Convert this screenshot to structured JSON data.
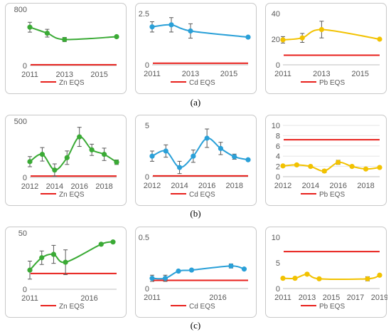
{
  "captions": [
    "(a)",
    "(b)",
    "(c)"
  ],
  "chart_data": [
    {
      "id": "a-zn",
      "type": "line",
      "series": [
        {
          "name": "",
          "color": "#3aaa35",
          "x": [
            2011,
            2012,
            2013,
            2016
          ],
          "values": [
            545,
            460,
            370,
            410
          ],
          "err": [
            70,
            55,
            30,
            0
          ]
        }
      ],
      "eqs": {
        "label": "Zn EQS",
        "value": 12
      },
      "xticks": [
        2011,
        2013,
        2015
      ],
      "yticks": [
        0,
        800
      ],
      "xlim": [
        2011,
        2016
      ],
      "ylim": [
        0,
        800
      ]
    },
    {
      "id": "a-cd",
      "type": "line",
      "series": [
        {
          "name": "",
          "color": "#2aa0d8",
          "x": [
            2011,
            2012,
            2013,
            2016
          ],
          "values": [
            1.85,
            1.95,
            1.65,
            1.35
          ],
          "err": [
            0.25,
            0.35,
            0.35,
            0
          ]
        }
      ],
      "eqs": {
        "label": "Cd EQS",
        "value": 0.08
      },
      "xticks": [
        2011,
        2013,
        2015
      ],
      "yticks": [
        0,
        2.5
      ],
      "xlim": [
        2011,
        2016
      ],
      "ylim": [
        0,
        2.5
      ]
    },
    {
      "id": "a-pb",
      "type": "line",
      "series": [
        {
          "name": "",
          "color": "#f2c200",
          "x": [
            2011,
            2012,
            2013,
            2016
          ],
          "values": [
            19.5,
            21,
            27.5,
            20
          ],
          "err": [
            2.5,
            3.5,
            6.5,
            0
          ]
        }
      ],
      "eqs": {
        "label": "Pb EQS",
        "value": 7.5
      },
      "xticks": [
        2011,
        2013,
        2015
      ],
      "yticks": [
        0,
        20,
        40
      ],
      "xlim": [
        2011,
        2016
      ],
      "ylim": [
        0,
        40
      ]
    },
    {
      "id": "b-zn",
      "type": "line",
      "series": [
        {
          "name": "",
          "color": "#3aaa35",
          "x": [
            2012,
            2013,
            2014,
            2015,
            2016,
            2017,
            2018,
            2019
          ],
          "values": [
            140,
            205,
            65,
            175,
            360,
            245,
            205,
            135
          ],
          "err": [
            45,
            60,
            55,
            60,
            85,
            50,
            55,
            20
          ]
        }
      ],
      "eqs": {
        "label": "Zn EQS",
        "value": 12
      },
      "xticks": [
        2012,
        2014,
        2016,
        2018
      ],
      "yticks": [
        0,
        500
      ],
      "xlim": [
        2012,
        2019
      ],
      "ylim": [
        0,
        500
      ]
    },
    {
      "id": "b-cd",
      "type": "line",
      "series": [
        {
          "name": "",
          "color": "#2aa0d8",
          "x": [
            2012,
            2013,
            2014,
            2015,
            2016,
            2017,
            2018,
            2019
          ],
          "values": [
            2.0,
            2.5,
            0.9,
            2.0,
            3.75,
            2.75,
            1.95,
            1.65
          ],
          "err": [
            0.5,
            0.6,
            0.6,
            0.6,
            0.9,
            0.6,
            0.25,
            0.1
          ]
        }
      ],
      "eqs": {
        "label": "Cd EQS",
        "value": 0.08
      },
      "xticks": [
        2012,
        2014,
        2016,
        2018
      ],
      "yticks": [
        0,
        5
      ],
      "xlim": [
        2012,
        2019
      ],
      "ylim": [
        0,
        5
      ]
    },
    {
      "id": "b-pb",
      "type": "line",
      "series": [
        {
          "name": "",
          "color": "#f2c200",
          "x": [
            2012,
            2013,
            2014,
            2015,
            2016,
            2017,
            2018,
            2019
          ],
          "values": [
            2.1,
            2.3,
            2.0,
            1.1,
            2.8,
            2.0,
            1.5,
            1.8
          ],
          "err": [
            0.2,
            0.2,
            0.2,
            0.3,
            0.4,
            0.2,
            0.2,
            0.2
          ]
        }
      ],
      "eqs": {
        "label": "Pb EQS",
        "value": 7.2
      },
      "xticks": [
        2012,
        2014,
        2016,
        2018
      ],
      "yticks": [
        0,
        2,
        4,
        6,
        8,
        10
      ],
      "xlim": [
        2012,
        2019
      ],
      "ylim": [
        0,
        10
      ]
    },
    {
      "id": "c-zn",
      "type": "line",
      "series": [
        {
          "name": "",
          "color": "#3aaa35",
          "x": [
            2011,
            2012,
            2013,
            2014,
            2017,
            2018
          ],
          "values": [
            17,
            28,
            31,
            24,
            40,
            42
          ],
          "err": [
            8,
            6,
            8,
            11,
            1,
            0
          ]
        }
      ],
      "eqs": {
        "label": "Zn EQS",
        "value": 14
      },
      "xticks": [
        2011,
        2016
      ],
      "yticks": [
        0,
        50
      ],
      "xlim": [
        2011,
        2018.3
      ],
      "ylim": [
        0,
        50
      ]
    },
    {
      "id": "c-cd",
      "type": "line",
      "series": [
        {
          "name": "",
          "color": "#2aa0d8",
          "x": [
            2011,
            2012,
            2013,
            2014,
            2017,
            2018
          ],
          "values": [
            0.1,
            0.1,
            0.17,
            0.18,
            0.22,
            0.19
          ],
          "err": [
            0.03,
            0.03,
            0.01,
            0.01,
            0.02,
            0
          ]
        }
      ],
      "eqs": {
        "label": "Cd EQS",
        "value": 0.08
      },
      "xticks": [
        2011,
        2016
      ],
      "yticks": [
        0,
        0.5
      ],
      "xlim": [
        2011,
        2018.3
      ],
      "ylim": [
        0,
        0.5
      ]
    },
    {
      "id": "c-pb",
      "type": "line",
      "series": [
        {
          "name": "",
          "color": "#f2c200",
          "x": [
            2011,
            2012,
            2013,
            2014,
            2018,
            2019
          ],
          "values": [
            2.0,
            2.0,
            2.8,
            1.9,
            1.9,
            2.6
          ],
          "err": [
            0.2,
            0.2,
            0.2,
            0.1,
            0.4,
            0.2
          ]
        }
      ],
      "eqs": {
        "label": "Pb EQS",
        "value": 7.2
      },
      "xticks": [
        2011,
        2013,
        2015,
        2017,
        2019
      ],
      "yticks": [
        0,
        5,
        10
      ],
      "xlim": [
        2011,
        2019
      ],
      "ylim": [
        0,
        10
      ]
    }
  ]
}
